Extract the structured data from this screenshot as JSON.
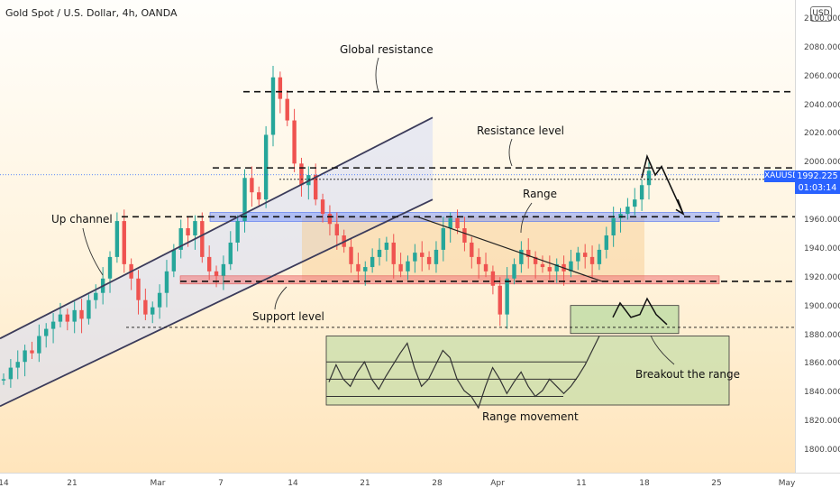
{
  "header": {
    "title": "Gold Spot / U.S. Dollar, 4h, OANDA",
    "currency_button": "USD"
  },
  "price_badge": {
    "symbol": "XAUUSD",
    "price": "1992.225",
    "countdown": "01:03:14"
  },
  "annotations": {
    "global_resistance": "Global resistance",
    "resistance_level": "Resistance level",
    "range": "Range",
    "up_channel": "Up channel",
    "support_level": "Support level",
    "breakout": "Breakout the range",
    "range_movement": "Range movement"
  },
  "colors": {
    "up": "#26a69a",
    "down": "#ef5350",
    "channel": "#3b3b5a",
    "support_zone": "#f08080",
    "resistance_zone": "#6b8cff",
    "range_zone": "#f7c98b",
    "green_zone": "#b5d99c"
  },
  "chart_data": {
    "type": "candlestick",
    "title": "Gold Spot / U.S. Dollar, 4h, OANDA",
    "ylim": [
      1790,
      2120
    ],
    "y_ticks": [
      "2100.000",
      "2080.000",
      "2060.000",
      "2040.000",
      "2020.000",
      "2000.000",
      "1980.000",
      "1960.000",
      "1940.000",
      "1920.000",
      "1900.000",
      "1880.000",
      "1860.000",
      "1840.000",
      "1820.000",
      "1800.000"
    ],
    "x_ticks": [
      "14",
      "21",
      "Mar",
      "7",
      "14",
      "21",
      "28",
      "Apr",
      "11",
      "18",
      "25",
      "May"
    ],
    "levels": {
      "global_resistance": 2050,
      "resistance": 1997,
      "range_top": 1963,
      "support": 1918,
      "breakout_line": 1886
    },
    "last_price": 1992.225,
    "price_path": [
      1850,
      1858,
      1862,
      1870,
      1868,
      1880,
      1885,
      1890,
      1895,
      1890,
      1898,
      1892,
      1905,
      1910,
      1920,
      1935,
      1960,
      1930,
      1920,
      1905,
      1895,
      1900,
      1910,
      1925,
      1940,
      1955,
      1950,
      1960,
      1935,
      1925,
      1922,
      1930,
      1945,
      1960,
      1990,
      1980,
      1975,
      2020,
      2060,
      2045,
      2030,
      2000,
      1985,
      1992,
      1975,
      1965,
      1958,
      1950,
      1942,
      1930,
      1925,
      1928,
      1935,
      1940,
      1945,
      1930,
      1925,
      1932,
      1938,
      1935,
      1930,
      1940,
      1955,
      1962,
      1955,
      1945,
      1935,
      1930,
      1925,
      1915,
      1895,
      1920,
      1930,
      1940,
      1935,
      1930,
      1928,
      1925,
      1930,
      1925,
      1932,
      1938,
      1935,
      1930,
      1940,
      1950,
      1962,
      1965,
      1970,
      1975,
      1985,
      1995
    ]
  }
}
